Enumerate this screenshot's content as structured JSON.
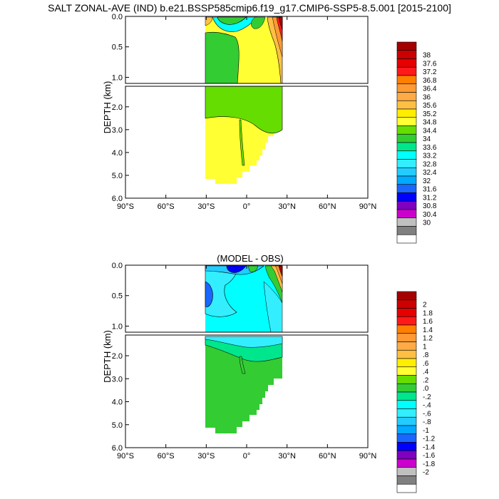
{
  "title": "SALT ZONAL-AVE (IND) b.e21.BSSP585cmip6.f19_g17.CMIP6-SSP5-8.5.001 [2015-2100]",
  "chart_data": [
    {
      "type": "contour",
      "title": "",
      "ylabel": "DEPTH (km)",
      "x_ticks": [
        "90°S",
        "60°S",
        "30°S",
        "0°",
        "30°N",
        "60°N",
        "90°N"
      ],
      "xlim": [
        -90,
        90
      ],
      "upper_y_ticks": [
        "0.0",
        "0.5",
        "1.0"
      ],
      "upper_ylim_km": [
        0,
        1.1
      ],
      "lower_y_ticks": [
        "2.0",
        "3.0",
        "4.0",
        "5.0",
        "6.0"
      ],
      "lower_ylim_km": [
        1.1,
        6.0
      ],
      "colorbar": {
        "labels": [
          "38",
          "37.6",
          "37.2",
          "36.8",
          "36.4",
          "36",
          "35.6",
          "35.2",
          "34.8",
          "34.4",
          "34",
          "33.6",
          "33.2",
          "32.8",
          "32.4",
          "32",
          "31.6",
          "31.2",
          "30.8",
          "30.4",
          "30"
        ],
        "colors": [
          "#a50000",
          "#cc0000",
          "#e60000",
          "#ff1a1a",
          "#ff7f00",
          "#ff9933",
          "#ffaa44",
          "#ffbf44",
          "#ffee00",
          "#ffff33",
          "#66dd00",
          "#33cc33",
          "#00e68c",
          "#00ffff",
          "#33eeff",
          "#22ccff",
          "#00aaff",
          "#1a66ff",
          "#0000ff",
          "#7f00bf",
          "#cc00cc",
          "#c0c0c0",
          "#808080",
          "#ffffff"
        ]
      }
    },
    {
      "type": "contour",
      "title": "(MODEL - OBS)",
      "ylabel": "DEPTH (km)",
      "x_ticks": [
        "90°S",
        "60°S",
        "30°S",
        "0°",
        "30°N",
        "60°N",
        "90°N"
      ],
      "xlim": [
        -90,
        90
      ],
      "upper_y_ticks": [
        "0.0",
        "0.5",
        "1.0"
      ],
      "upper_ylim_km": [
        0,
        1.1
      ],
      "lower_y_ticks": [
        "2.0",
        "3.0",
        "4.0",
        "5.0",
        "6.0"
      ],
      "lower_ylim_km": [
        1.1,
        6.0
      ],
      "colorbar": {
        "labels": [
          "2",
          "1.8",
          "1.6",
          "1.4",
          "1.2",
          "1",
          ".8",
          ".6",
          ".4",
          ".2",
          ".0",
          "-.2",
          "-.4",
          "-.6",
          "-.8",
          "-1",
          "-1.2",
          "-1.4",
          "-1.6",
          "-1.8",
          "-2"
        ],
        "colors": [
          "#a50000",
          "#cc0000",
          "#e60000",
          "#ff1a1a",
          "#ff7f00",
          "#ff9933",
          "#ffaa44",
          "#ffbf44",
          "#ffee00",
          "#ffff33",
          "#66dd00",
          "#33cc33",
          "#00e68c",
          "#00ffff",
          "#33eeff",
          "#22ccff",
          "#00aaff",
          "#1a66ff",
          "#0000ff",
          "#7f00bf",
          "#cc00cc",
          "#c0c0c0",
          "#808080",
          "#ffffff"
        ]
      }
    }
  ]
}
